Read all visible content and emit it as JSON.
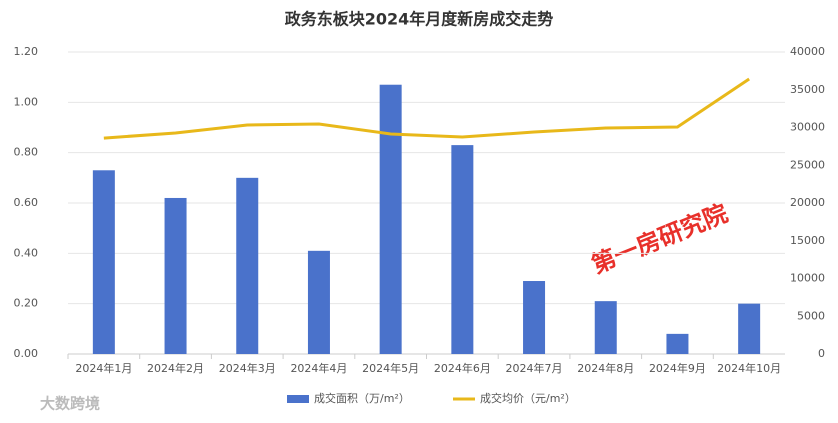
{
  "chart_data": {
    "type": "bar_line",
    "title": "政务东板块2024年月度新房成交走势",
    "categories": [
      "2024年1月",
      "2024年2月",
      "2024年3月",
      "2024年4月",
      "2024年5月",
      "2024年6月",
      "2024年7月",
      "2024年8月",
      "2024年9月",
      "2024年10月"
    ],
    "series": [
      {
        "name": "成交面积（万/m²）",
        "type": "bar",
        "color": "#4a72cb",
        "values": [
          0.73,
          0.62,
          0.7,
          0.41,
          1.07,
          0.83,
          0.29,
          0.21,
          0.08,
          0.2
        ]
      },
      {
        "name": "成交均价（元/m²）",
        "type": "line",
        "axis": "y2",
        "color": "#e8b81a",
        "values": [
          28600,
          29270,
          30330,
          30460,
          29140,
          28740,
          29400,
          29930,
          30070,
          36420
        ]
      }
    ],
    "ylim": [
      0,
      1.2
    ],
    "yticks": [
      {
        "value": 0,
        "label": "0.00"
      },
      {
        "value": 0.2,
        "label": "0.20"
      },
      {
        "value": 0.4,
        "label": "0.40"
      },
      {
        "value": 0.6,
        "label": "0.60"
      },
      {
        "value": 0.8,
        "label": "0.80"
      },
      {
        "value": 1.0,
        "label": "1.00"
      },
      {
        "value": 1.2,
        "label": "1.20"
      }
    ],
    "y2lim": [
      0,
      40000
    ],
    "y2ticks": [
      0,
      5000,
      10000,
      15000,
      20000,
      25000,
      30000,
      35000,
      40000
    ],
    "grid": true,
    "legend": "bottom",
    "annotations": [
      "第一房研究院",
      "大数跨境"
    ]
  }
}
